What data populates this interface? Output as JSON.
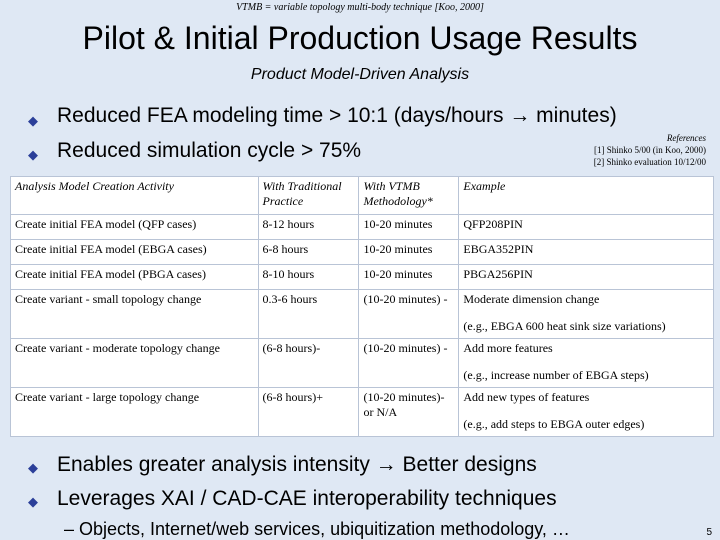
{
  "header": {
    "caption": "VTMB = variable topology multi-body technique [Koo, 2000]",
    "title": "Pilot & Initial Production Usage Results",
    "subtitle": "Product Model-Driven Analysis"
  },
  "bullets_top": [
    "Reduced FEA modeling time > 10:1 (days/hours → minutes)",
    "Reduced simulation cycle > 75%"
  ],
  "references": {
    "heading": "References",
    "items": [
      "[1] Shinko 5/00 (in Koo, 2000)",
      "[2] Shinko evaluation 10/12/00"
    ]
  },
  "table": {
    "headers": [
      "Analysis Model Creation Activity",
      "With Traditional Practice",
      "With VTMB Methodology*",
      "Example"
    ],
    "rows": [
      {
        "activity": "Create initial FEA model (QFP cases)",
        "traditional": "8-12 hours",
        "vtmb": "10-20 minutes",
        "example": "QFP208PIN",
        "example_note": ""
      },
      {
        "activity": "Create initial FEA model (EBGA cases)",
        "traditional": "6-8 hours",
        "vtmb": "10-20 minutes",
        "example": "EBGA352PIN",
        "example_note": ""
      },
      {
        "activity": "Create initial FEA model (PBGA cases)",
        "traditional": "8-10 hours",
        "vtmb": "10-20 minutes",
        "example": "PBGA256PIN",
        "example_note": ""
      },
      {
        "activity": "Create variant - small topology change",
        "traditional": "0.3-6 hours",
        "vtmb": "(10-20 minutes) -",
        "example": "Moderate dimension change",
        "example_note": "(e.g., EBGA 600 heat sink size variations)"
      },
      {
        "activity": "Create variant - moderate topology change",
        "traditional": "(6-8 hours)-",
        "vtmb": "(10-20 minutes) -",
        "example": "Add more features",
        "example_note": "(e.g., increase number of EBGA steps)"
      },
      {
        "activity": "Create variant - large topology change",
        "traditional": "(6-8 hours)+",
        "vtmb": "(10-20 minutes)- or N/A",
        "example": "Add new types of features",
        "example_note": "(e.g., add steps to EBGA outer edges)"
      }
    ]
  },
  "bullets_bottom": [
    "Enables greater analysis intensity → Better designs",
    "Leverages XAI / CAD-CAE interoperability techniques"
  ],
  "sub_bullet": "– Objects, Internet/web services, ubiquitization methodology, …",
  "page_number": "5",
  "colors": {
    "background": "#dfe8f4",
    "bullet": "#2b3f99",
    "table_border": "#b9c4d6"
  },
  "icons": {
    "bullet": "diamond-bullet-icon"
  }
}
